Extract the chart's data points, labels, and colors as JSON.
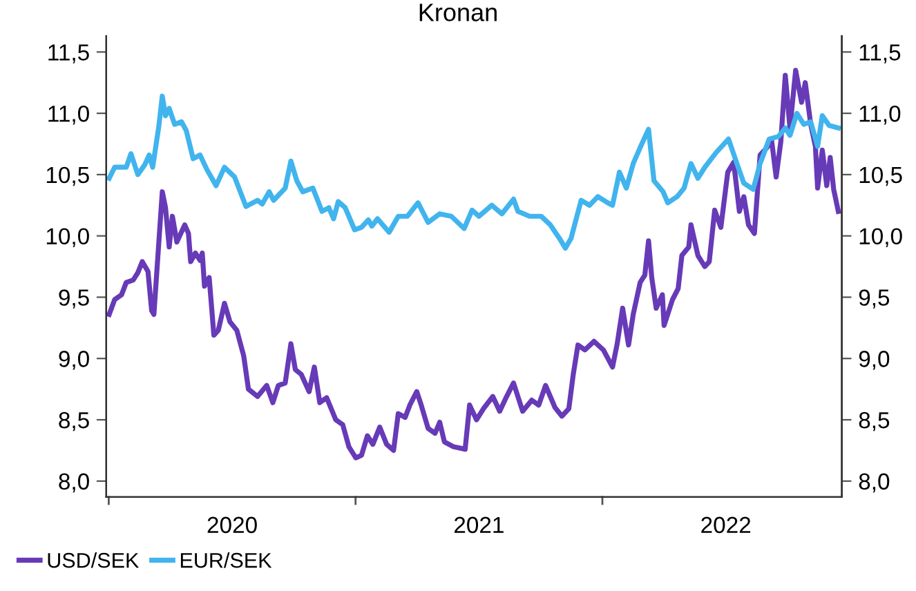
{
  "chart_data": {
    "type": "line",
    "title": "Kronan",
    "xlim": [
      2019.99,
      2022.97
    ],
    "xticks": [
      {
        "value": 2020,
        "label": null
      },
      {
        "value": 2020.5,
        "label": "2020"
      },
      {
        "value": 2021,
        "label": null
      },
      {
        "value": 2021.5,
        "label": "2021"
      },
      {
        "value": 2022,
        "label": null
      },
      {
        "value": 2022.5,
        "label": "2022"
      }
    ],
    "ylim": [
      7.87,
      11.63
    ],
    "yticks": [
      {
        "value": 8,
        "label": "8,0"
      },
      {
        "value": 8.5,
        "label": "8,5"
      },
      {
        "value": 9,
        "label": "9,0"
      },
      {
        "value": 9.5,
        "label": "9,5"
      },
      {
        "value": 10,
        "label": "10,0"
      },
      {
        "value": 10.5,
        "label": "10,5"
      },
      {
        "value": 11,
        "label": "11,0"
      },
      {
        "value": 11.5,
        "label": "11,5"
      }
    ],
    "y2lim": [
      7.87,
      11.63
    ],
    "y2ticks": [
      {
        "value": 8,
        "label": "8,0"
      },
      {
        "value": 8.5,
        "label": "8,5"
      },
      {
        "value": 9,
        "label": "9,0"
      },
      {
        "value": 9.5,
        "label": "9,5"
      },
      {
        "value": 10,
        "label": "10,0"
      },
      {
        "value": 10.5,
        "label": "10,5"
      },
      {
        "value": 11,
        "label": "11,0"
      },
      {
        "value": 11.5,
        "label": "11,5"
      }
    ],
    "grid": false,
    "legend": "bottom left",
    "marker": "none",
    "line_style": "solid",
    "series": [
      {
        "name": "USD/SEK",
        "color": "#673ab7",
        "x": [
          2020.002,
          2020.024,
          2020.052,
          2020.071,
          2020.099,
          2020.118,
          2020.136,
          2020.159,
          2020.174,
          2020.183,
          2020.198,
          2020.217,
          2020.23,
          2020.245,
          2020.258,
          2020.276,
          2020.308,
          2020.323,
          2020.332,
          2020.351,
          2020.37,
          2020.379,
          2020.388,
          2020.407,
          2020.426,
          2020.444,
          2020.469,
          2020.491,
          2020.519,
          2020.547,
          2020.566,
          2020.603,
          2020.64,
          2020.665,
          2020.687,
          2020.715,
          2020.738,
          2020.756,
          2020.78,
          2020.812,
          2020.833,
          2020.855,
          2020.883,
          2020.92,
          2020.948,
          2020.973,
          2021.001,
          2021.024,
          2021.048,
          2021.07,
          2021.098,
          2021.126,
          2021.154,
          2021.173,
          2021.201,
          2021.22,
          2021.248,
          2021.266,
          2021.294,
          2021.322,
          2021.341,
          2021.36,
          2021.397,
          2021.444,
          2021.462,
          2021.49,
          2021.518,
          2021.556,
          2021.584,
          2021.612,
          2021.64,
          2021.677,
          2021.714,
          2021.742,
          2021.77,
          2021.808,
          2021.836,
          2021.864,
          2021.882,
          2021.901,
          2021.929,
          2021.966,
          2022.004,
          2022.041,
          2022.06,
          2022.082,
          2022.106,
          2022.125,
          2022.153,
          2022.172,
          2022.187,
          2022.2,
          2022.218,
          2022.243,
          2022.25,
          2022.284,
          2022.307,
          2022.322,
          2022.35,
          2022.359,
          2022.387,
          2022.415,
          2022.433,
          2022.455,
          2022.48,
          2022.508,
          2022.532,
          2022.555,
          2022.573,
          2022.592,
          2022.616,
          2022.639,
          2022.667,
          2022.685,
          2022.704,
          2022.723,
          2022.741,
          2022.76,
          2022.783,
          2022.807,
          2022.822,
          2022.844,
          2022.863,
          2022.872,
          2022.891,
          2022.909,
          2022.923,
          2022.937,
          2022.956
        ],
        "values": [
          9.36,
          9.48,
          9.52,
          9.62,
          9.64,
          9.7,
          9.79,
          9.71,
          9.39,
          9.36,
          9.8,
          10.36,
          10.23,
          9.91,
          10.16,
          9.95,
          10.09,
          10.02,
          9.79,
          9.86,
          9.8,
          9.86,
          9.59,
          9.66,
          9.19,
          9.23,
          9.45,
          9.3,
          9.23,
          9.02,
          8.75,
          8.69,
          8.78,
          8.64,
          8.78,
          8.8,
          9.12,
          8.91,
          8.87,
          8.73,
          8.93,
          8.64,
          8.68,
          8.5,
          8.46,
          8.28,
          8.19,
          8.21,
          8.37,
          8.3,
          8.44,
          8.3,
          8.25,
          8.55,
          8.52,
          8.62,
          8.73,
          8.62,
          8.43,
          8.39,
          8.48,
          8.32,
          8.28,
          8.26,
          8.62,
          8.5,
          8.59,
          8.69,
          8.57,
          8.69,
          8.8,
          8.57,
          8.66,
          8.62,
          8.78,
          8.6,
          8.53,
          8.59,
          8.87,
          9.11,
          9.07,
          9.14,
          9.07,
          8.93,
          9.12,
          9.41,
          9.11,
          9.36,
          9.62,
          9.68,
          9.96,
          9.66,
          9.41,
          9.52,
          9.27,
          9.48,
          9.57,
          9.84,
          9.91,
          10.09,
          9.84,
          9.75,
          9.79,
          10.21,
          10.07,
          10.52,
          10.6,
          10.2,
          10.32,
          10.09,
          10.02,
          10.66,
          10.72,
          10.79,
          10.48,
          10.77,
          11.31,
          10.88,
          11.35,
          11.09,
          11.25,
          10.91,
          10.73,
          10.39,
          10.7,
          10.41,
          10.64,
          10.38,
          10.2
        ]
      },
      {
        "name": "EUR/SEK",
        "color": "#41b4ee",
        "x": [
          2020.002,
          2020.024,
          2020.071,
          2020.09,
          2020.118,
          2020.146,
          2020.164,
          2020.178,
          2020.202,
          2020.217,
          2020.23,
          2020.245,
          2020.267,
          2020.295,
          2020.314,
          2020.342,
          2020.37,
          2020.398,
          2020.435,
          2020.469,
          2020.51,
          2020.556,
          2020.603,
          2020.622,
          2020.65,
          2020.668,
          2020.715,
          2020.738,
          2020.762,
          2020.786,
          2020.827,
          2020.864,
          2020.892,
          2020.911,
          2020.93,
          2020.958,
          2020.996,
          2021.024,
          2021.052,
          2021.066,
          2021.089,
          2021.136,
          2021.173,
          2021.21,
          2021.253,
          2021.294,
          2021.341,
          2021.388,
          2021.44,
          2021.472,
          2021.5,
          2021.552,
          2021.593,
          2021.64,
          2021.658,
          2021.705,
          2021.752,
          2021.789,
          2021.826,
          2021.85,
          2021.873,
          2021.914,
          2021.948,
          2021.982,
          2022.022,
          2022.041,
          2022.069,
          2022.097,
          2022.125,
          2022.153,
          2022.187,
          2022.209,
          2022.246,
          2022.265,
          2022.303,
          2022.331,
          2022.359,
          2022.387,
          2022.415,
          2022.461,
          2022.511,
          2022.545,
          2022.573,
          2022.611,
          2022.639,
          2022.676,
          2022.713,
          2022.741,
          2022.76,
          2022.788,
          2022.816,
          2022.844,
          2022.872,
          2022.891,
          2022.919,
          2022.956
        ],
        "values": [
          10.47,
          10.56,
          10.56,
          10.67,
          10.5,
          10.58,
          10.66,
          10.56,
          10.88,
          11.14,
          10.98,
          11.04,
          10.91,
          10.93,
          10.86,
          10.63,
          10.66,
          10.54,
          10.41,
          10.56,
          10.48,
          10.24,
          10.29,
          10.26,
          10.36,
          10.29,
          10.39,
          10.61,
          10.45,
          10.36,
          10.39,
          10.2,
          10.23,
          10.14,
          10.28,
          10.23,
          10.05,
          10.07,
          10.13,
          10.08,
          10.14,
          10.03,
          10.16,
          10.16,
          10.27,
          10.11,
          10.18,
          10.16,
          10.06,
          10.21,
          10.16,
          10.25,
          10.18,
          10.3,
          10.2,
          10.16,
          10.16,
          10.09,
          9.98,
          9.9,
          9.98,
          10.29,
          10.25,
          10.32,
          10.27,
          10.25,
          10.52,
          10.39,
          10.59,
          10.72,
          10.87,
          10.45,
          10.36,
          10.27,
          10.32,
          10.39,
          10.59,
          10.47,
          10.56,
          10.68,
          10.79,
          10.59,
          10.43,
          10.38,
          10.59,
          10.79,
          10.81,
          10.88,
          10.82,
          11.0,
          10.91,
          10.93,
          10.73,
          10.98,
          10.9,
          10.88
        ]
      }
    ]
  }
}
